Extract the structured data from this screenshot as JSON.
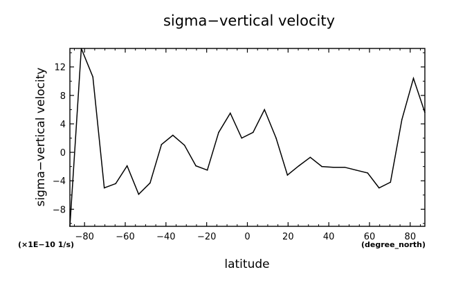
{
  "chart_data": {
    "type": "line",
    "title": "sigma−vertical velocity",
    "xlabel": "latitude",
    "ylabel": "sigma−vertical velocity",
    "x_units": "(degree_north)",
    "y_units": "(×1E−10 1/s)",
    "xlim": [
      -87.2,
      87.2
    ],
    "ylim": [
      -10.4,
      14.6
    ],
    "xticks": [
      -80,
      -60,
      -40,
      -20,
      0,
      20,
      40,
      60,
      80
    ],
    "xtick_labels": [
      "−80",
      "−60",
      "−40",
      "−20",
      "0",
      "20",
      "40",
      "60",
      "80"
    ],
    "yticks": [
      -8,
      -4,
      0,
      4,
      8,
      12
    ],
    "ytick_labels": [
      "−8",
      "−4",
      "0",
      "4",
      "8",
      "12"
    ],
    "grid": false,
    "series": [
      {
        "x": [
          -87.2,
          -81.6,
          -75.9,
          -70.3,
          -64.7,
          -59.1,
          -53.4,
          -47.8,
          -42.2,
          -36.6,
          -30.9,
          -25.3,
          -19.7,
          -14.1,
          -8.4,
          -2.8,
          2.8,
          8.4,
          14.1,
          19.7,
          25.3,
          30.9,
          36.6,
          42.2,
          47.8,
          53.4,
          59.1,
          64.7,
          70.3,
          75.9,
          81.6,
          87.2
        ],
        "values": [
          -10.4,
          14.6,
          10.6,
          -5.0,
          -4.4,
          -1.9,
          -5.9,
          -4.3,
          1.1,
          2.4,
          1.0,
          -1.9,
          -2.5,
          2.8,
          5.5,
          2.0,
          2.8,
          6.0,
          2.0,
          -3.2,
          -1.9,
          -0.7,
          -2.0,
          -2.1,
          -2.1,
          -2.5,
          -2.9,
          -5.0,
          -4.2,
          4.6,
          10.4,
          5.6
        ]
      }
    ]
  }
}
